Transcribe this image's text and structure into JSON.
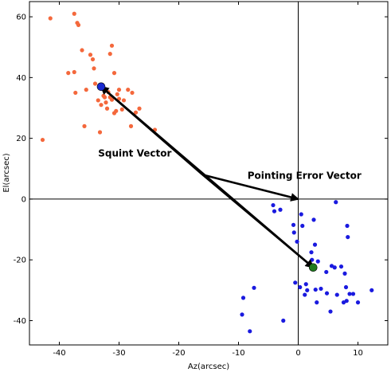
{
  "chart_data": {
    "type": "scatter",
    "title": "",
    "xlabel": "Az(arcsec)",
    "ylabel": "El(arcsec)",
    "xlim": [
      -45,
      15
    ],
    "ylim": [
      -48,
      65
    ],
    "x_ticks": [
      -40,
      -30,
      -20,
      -10,
      0,
      10
    ],
    "y_ticks": [
      -40,
      -20,
      0,
      20,
      40,
      60
    ],
    "grid": false,
    "reference_lines": {
      "x": 0,
      "y": 0
    },
    "series": [
      {
        "color": "#f4683c",
        "marker_size": "small",
        "points": [
          [
            -42.8,
            19.5
          ],
          [
            -41.5,
            59.5
          ],
          [
            -38.5,
            41.5
          ],
          [
            -37.5,
            61.0
          ],
          [
            -37.5,
            41.8
          ],
          [
            -37.0,
            58.0
          ],
          [
            -36.8,
            57.3
          ],
          [
            -37.3,
            35.0
          ],
          [
            -36.2,
            49.0
          ],
          [
            -35.8,
            24.0
          ],
          [
            -35.5,
            36.0
          ],
          [
            -34.8,
            47.5
          ],
          [
            -34.2,
            43.0
          ],
          [
            -34.4,
            46.0
          ],
          [
            -34.0,
            38.0
          ],
          [
            -33.5,
            32.5
          ],
          [
            -33.2,
            22.0
          ],
          [
            -33.0,
            31.0
          ],
          [
            -32.8,
            36.5
          ],
          [
            -32.6,
            34.0
          ],
          [
            -32.4,
            33.5
          ],
          [
            -32.2,
            31.8
          ],
          [
            -32.0,
            29.8
          ],
          [
            -31.8,
            35.2
          ],
          [
            -31.5,
            33.5
          ],
          [
            -31.2,
            32.7
          ],
          [
            -31.5,
            47.8
          ],
          [
            -31.2,
            50.5
          ],
          [
            -30.8,
            28.3
          ],
          [
            -30.5,
            29.0
          ],
          [
            -30.3,
            34.5
          ],
          [
            -30.0,
            36.0
          ],
          [
            -30.0,
            33.0
          ],
          [
            -30.8,
            41.5
          ],
          [
            -29.5,
            29.5
          ],
          [
            -29.2,
            32.5
          ],
          [
            -28.5,
            36.0
          ],
          [
            -28.0,
            24.0
          ],
          [
            -27.8,
            35.0
          ],
          [
            -27.2,
            28.5
          ],
          [
            -26.6,
            29.8
          ],
          [
            -24.0,
            22.8
          ]
        ]
      },
      {
        "color": "#1a1adf",
        "marker_size": "small",
        "points": [
          [
            -9.2,
            -32.5
          ],
          [
            -9.4,
            -38.0
          ],
          [
            -8.1,
            -43.5
          ],
          [
            -7.4,
            -29.2
          ],
          [
            -4.2,
            -2.0
          ],
          [
            -4.0,
            -4.0
          ],
          [
            -3.0,
            -3.5
          ],
          [
            -2.5,
            -40.0
          ],
          [
            -0.8,
            -8.5
          ],
          [
            -0.7,
            -11.0
          ],
          [
            -0.5,
            -27.5
          ],
          [
            -0.2,
            -14.0
          ],
          [
            0.3,
            -29.0
          ],
          [
            0.5,
            -5.0
          ],
          [
            0.7,
            -8.8
          ],
          [
            1.1,
            -31.5
          ],
          [
            1.3,
            -28.0
          ],
          [
            1.5,
            -30.0
          ],
          [
            2.2,
            -17.5
          ],
          [
            2.3,
            -20.0
          ],
          [
            2.6,
            -6.8
          ],
          [
            2.8,
            -15.0
          ],
          [
            2.9,
            -29.8
          ],
          [
            3.1,
            -34.0
          ],
          [
            3.3,
            -20.5
          ],
          [
            3.8,
            -29.5
          ],
          [
            4.7,
            -24.0
          ],
          [
            4.8,
            -31.0
          ],
          [
            5.4,
            -37.0
          ],
          [
            5.6,
            -22.0
          ],
          [
            6.1,
            -22.5
          ],
          [
            6.3,
            -1.0
          ],
          [
            6.5,
            -31.5
          ],
          [
            7.2,
            -22.2
          ],
          [
            7.6,
            -34.0
          ],
          [
            7.8,
            -24.5
          ],
          [
            8.0,
            -29.0
          ],
          [
            8.1,
            -33.5
          ],
          [
            8.2,
            -8.8
          ],
          [
            8.3,
            -12.5
          ],
          [
            8.6,
            -31.2
          ],
          [
            9.2,
            -31.2
          ],
          [
            10.0,
            -34.0
          ],
          [
            12.3,
            -30.0
          ]
        ]
      }
    ],
    "highlight_points": [
      {
        "x": -33.0,
        "y": 37.0,
        "color": "#1a2ad0"
      },
      {
        "x": 2.5,
        "y": -22.5,
        "color": "#1e7a1e"
      }
    ],
    "arrows": [
      {
        "from": [
          -16.0,
          8.0
        ],
        "to": [
          -33.0,
          37.0
        ],
        "width": "thick",
        "color": "#000000"
      },
      {
        "from": [
          -16.0,
          8.0
        ],
        "to": [
          2.5,
          -22.5
        ],
        "width": "thick",
        "color": "#000000"
      },
      {
        "from": [
          -16.0,
          8.0
        ],
        "to": [
          0,
          0
        ],
        "width": "thick",
        "color": "#000000"
      }
    ],
    "annotations": [
      {
        "text": "Squint Vector",
        "x": -33.5,
        "y": 14.0
      },
      {
        "text": "Pointing Error Vector",
        "x": -8.5,
        "y": 6.7
      }
    ]
  }
}
